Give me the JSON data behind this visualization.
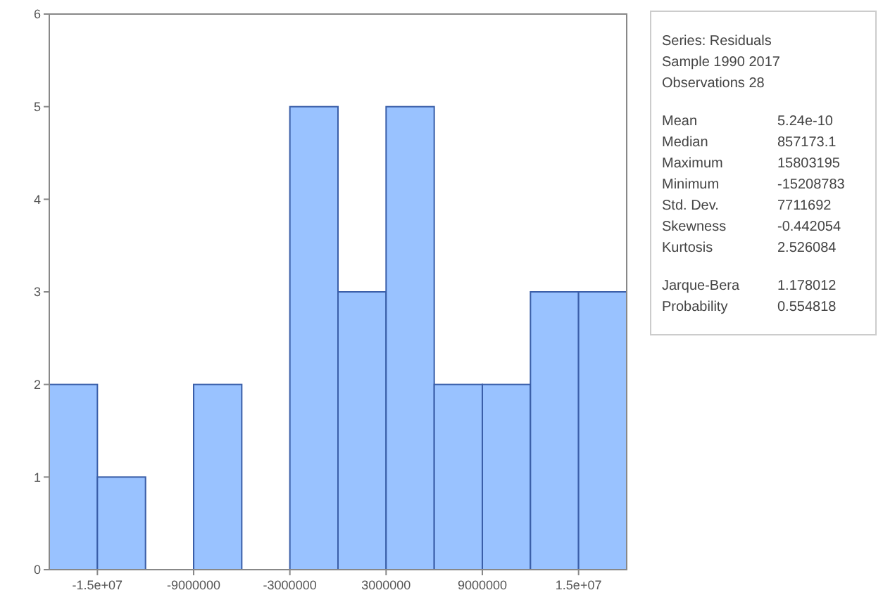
{
  "chart_data": {
    "type": "histogram",
    "bins": [
      -18000000,
      -15000000,
      -12000000,
      -9000000,
      -6000000,
      -3000000,
      0,
      3000000,
      6000000,
      9000000,
      12000000,
      15000000,
      18000000
    ],
    "values": [
      2,
      1,
      0,
      2,
      0,
      5,
      3,
      5,
      2,
      2,
      3,
      3
    ],
    "color": "#99c2ff",
    "xlim": [
      -18000000,
      18000000
    ],
    "xticks": [
      {
        "value": -15000000,
        "label": "-1.5e+07"
      },
      -9000000,
      -3000000,
      3000000,
      9000000,
      {
        "value": 15000000,
        "label": "1.5e+07"
      }
    ],
    "ylim": [
      0,
      6
    ],
    "yticks": [
      0,
      1,
      2,
      3,
      4,
      5,
      6
    ],
    "grid": false,
    "annotations": [
      "Series: Residuals",
      "Sample 1990 2017",
      "Observations 28",
      "Mean 5.24e-10",
      "Median 857173.1",
      "Maximum 15803195",
      "Minimum -15208783",
      "Std. Dev. 7711692",
      "Skewness -0.442054",
      "Kurtosis 2.526084",
      "Jarque-Bera 1.178012",
      "Probability 0.554818"
    ]
  }
}
